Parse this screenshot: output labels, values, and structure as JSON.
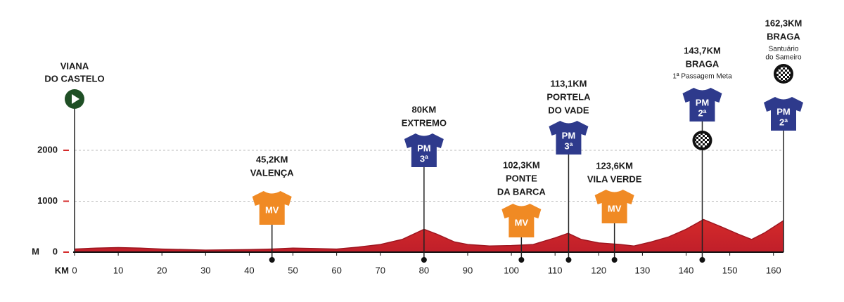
{
  "chart_data": {
    "type": "area",
    "x": [
      0,
      5,
      10,
      15,
      20,
      30,
      40,
      45,
      50,
      55,
      60,
      65,
      70,
      75,
      80,
      83,
      87,
      90,
      95,
      100,
      105,
      110,
      113,
      116,
      120,
      125,
      128,
      132,
      136,
      140,
      144,
      148,
      152,
      155,
      158,
      162.3
    ],
    "values": [
      60,
      80,
      90,
      80,
      60,
      40,
      50,
      60,
      80,
      70,
      60,
      100,
      150,
      250,
      450,
      350,
      200,
      150,
      120,
      130,
      150,
      280,
      370,
      250,
      180,
      150,
      120,
      200,
      300,
      450,
      640,
      500,
      350,
      250,
      380,
      620
    ],
    "color": "#d42a2a",
    "xlim": [
      0,
      162.3
    ],
    "ylim": [
      0,
      2000
    ],
    "xticks": [
      0,
      10,
      20,
      30,
      40,
      50,
      60,
      70,
      80,
      90,
      100,
      110,
      120,
      130,
      140,
      150,
      160
    ],
    "yticks": [
      0,
      1000,
      2000
    ],
    "x_label": "KM",
    "y_label": "M",
    "grid": true,
    "start": {
      "km": 0,
      "name": [
        "VIANA",
        "DO CASTELO"
      ]
    },
    "points": [
      {
        "km": 45.2,
        "km_label": "45,2KM",
        "name": [
          "VALENÇA"
        ],
        "jersey": "MV",
        "jersey_color": "#f08a24"
      },
      {
        "km": 80,
        "km_label": "80KM",
        "name": [
          "EXTREMO"
        ],
        "jersey": "PM",
        "category": "3ª",
        "jersey_color": "#2e3a8c"
      },
      {
        "km": 102.3,
        "km_label": "102,3KM",
        "name": [
          "PONTE",
          "DA BARCA"
        ],
        "jersey": "MV",
        "jersey_color": "#f08a24"
      },
      {
        "km": 113.1,
        "km_label": "113,1KM",
        "name": [
          "PORTELA",
          "DO VADE"
        ],
        "jersey": "PM",
        "category": "3ª",
        "jersey_color": "#2e3a8c"
      },
      {
        "km": 123.6,
        "km_label": "123,6KM",
        "name": [
          "VILA VERDE"
        ],
        "jersey": "MV",
        "jersey_color": "#f08a24"
      },
      {
        "km": 143.7,
        "km_label": "143,7KM",
        "name": [
          "BRAGA"
        ],
        "note": [
          "1ª Passagem Meta"
        ],
        "jersey": "PM",
        "category": "2ª",
        "jersey_color": "#2e3a8c",
        "flag": true
      },
      {
        "km": 162.3,
        "km_label": "162,3KM",
        "name": [
          "BRAGA"
        ],
        "note": [
          "Santuário",
          "do Sameiro"
        ],
        "jersey": "PM",
        "category": "2ª",
        "jersey_color": "#2e3a8c",
        "flag": true
      }
    ]
  }
}
